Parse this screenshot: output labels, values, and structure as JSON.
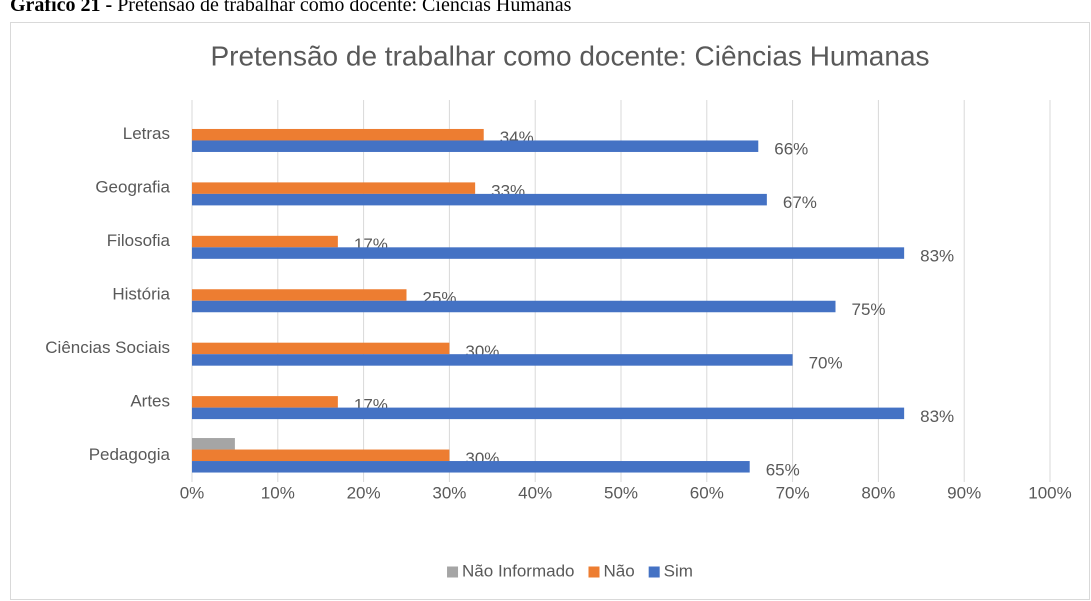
{
  "caption": {
    "label": "Gráfico 21 -",
    "text": "Pretensão de trabalhar como docente: Ciências Humanas"
  },
  "chart_data": {
    "type": "hbar",
    "title": "Pretensão de trabalhar como docente: Ciências Humanas",
    "categories": [
      "Letras",
      "Geografia",
      "Filosofia",
      "História",
      "Ciências Sociais",
      "Artes",
      "Pedagogia"
    ],
    "series": [
      {
        "name": "Não Informado",
        "color": "#a5a5a5",
        "values": [
          null,
          null,
          null,
          null,
          null,
          null,
          5
        ]
      },
      {
        "name": "Não",
        "color": "#ed7d31",
        "values": [
          34,
          33,
          17,
          25,
          30,
          17,
          30
        ],
        "value_labels": [
          "34%",
          "33%",
          "17%",
          "25%",
          "30%",
          "17%",
          "30%"
        ]
      },
      {
        "name": "Sim",
        "color": "#4472c4",
        "values": [
          66,
          67,
          83,
          75,
          70,
          83,
          65
        ],
        "value_labels": [
          "66%",
          "67%",
          "83%",
          "75%",
          "70%",
          "83%",
          "65%"
        ]
      }
    ],
    "xlim": [
      0,
      100
    ],
    "xticks": [
      {
        "value": 0,
        "label": "0%"
      },
      {
        "value": 10,
        "label": "10%"
      },
      {
        "value": 20,
        "label": "20%"
      },
      {
        "value": 30,
        "label": "30%"
      },
      {
        "value": 40,
        "label": "40%"
      },
      {
        "value": 50,
        "label": "50%"
      },
      {
        "value": 60,
        "label": "60%"
      },
      {
        "value": 70,
        "label": "70%"
      },
      {
        "value": 80,
        "label": "80%"
      },
      {
        "value": 90,
        "label": "90%"
      },
      {
        "value": 100,
        "label": "100%"
      }
    ],
    "grid": true,
    "legend": "bottom"
  }
}
